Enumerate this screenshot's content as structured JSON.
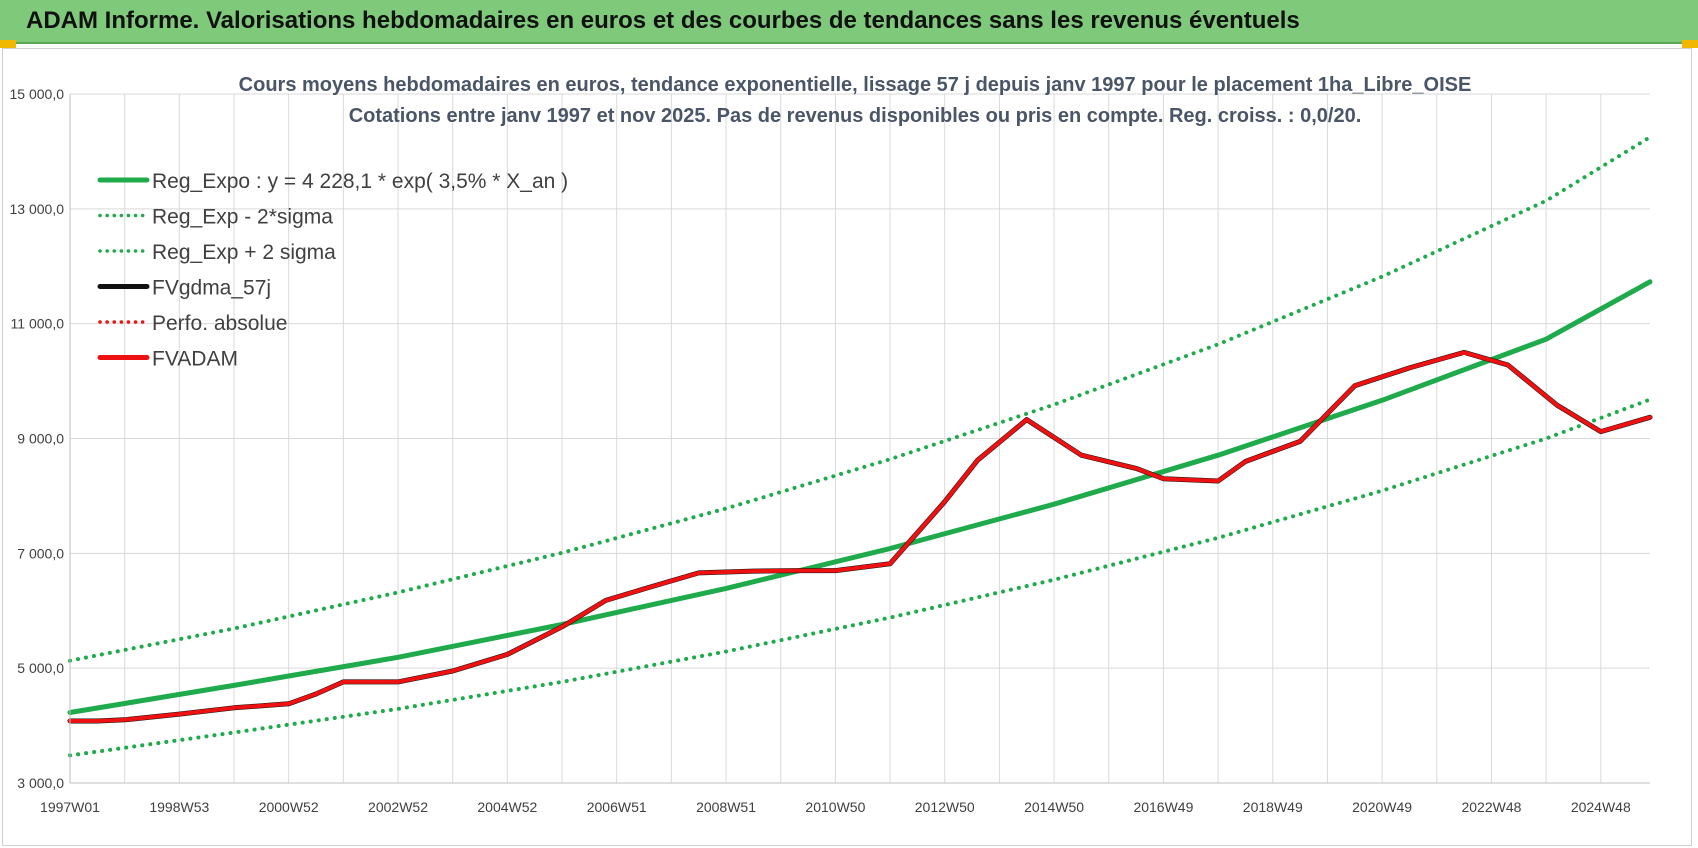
{
  "banner": {
    "title": "ADAM Informe. Valorisations hebdomadaires en euros et des courbes de tendances sans les revenus éventuels"
  },
  "colors": {
    "banner_bg": "#7ec97a",
    "trend_green": "#1faa4b",
    "fv_red": "#ee1111",
    "fv_black": "#111111",
    "grid": "#d9d9d9"
  },
  "chart_data": {
    "type": "line",
    "title": "Cours moyens hebdomadaires en euros, tendance exponentielle, lissage 57 j depuis janv 1997 pour le placement 1ha_Libre_OISE",
    "subtitle": "Cotations entre janv 1997 et nov 2025. Pas de revenus disponibles ou pris en compte. Reg. croiss. : 0,0/20.",
    "xlabel": "",
    "ylabel": "",
    "ylim": [
      3000,
      15000
    ],
    "xlim": [
      1997.0,
      2025.9
    ],
    "grid": true,
    "legend_position": "top-left",
    "y_ticks": [
      "3 000,0",
      "5 000,0",
      "7 000,0",
      "9 000,0",
      "11 000,0",
      "13 000,0",
      "15 000,0"
    ],
    "y_tick_values": [
      3000,
      5000,
      7000,
      9000,
      11000,
      13000,
      15000
    ],
    "x_tick_labels": [
      "1997W01",
      "1998W53",
      "2000W52",
      "2002W52",
      "2004W52",
      "2006W51",
      "2008W51",
      "2010W50",
      "2012W50",
      "2014W50",
      "2016W49",
      "2018W49",
      "2020W49",
      "2022W48",
      "2024W48"
    ],
    "x_tick_years": [
      1997.0,
      1999.0,
      2001.0,
      2003.0,
      2005.0,
      2007.0,
      2009.0,
      2011.0,
      2013.0,
      2015.0,
      2017.0,
      2019.0,
      2021.0,
      2023.0,
      2025.0
    ],
    "series": [
      {
        "name": "Reg_Expo : y = 4 228,1 * exp( 3,5% *  X_an )",
        "style": "solid",
        "color": "#1faa4b",
        "x": [
          1997.0,
          2000.0,
          2003.0,
          2006.0,
          2009.0,
          2012.0,
          2015.0,
          2018.0,
          2021.0,
          2024.0,
          2025.9
        ],
        "y": [
          4228,
          4700,
          5190,
          5760,
          6390,
          7085,
          7855,
          8710,
          9665,
          10730,
          11730
        ]
      },
      {
        "name": "Reg_Exp - 2*sigma",
        "style": "dotted",
        "color": "#1faa4b",
        "x": [
          1997.0,
          2000.0,
          2003.0,
          2006.0,
          2009.0,
          2012.0,
          2015.0,
          2018.0,
          2021.0,
          2024.0,
          2025.9
        ],
        "y": [
          3480,
          3880,
          4290,
          4760,
          5290,
          5880,
          6540,
          7270,
          8090,
          9000,
          9680
        ]
      },
      {
        "name": "Reg_Exp + 2 sigma",
        "style": "dotted",
        "color": "#1faa4b",
        "x": [
          1997.0,
          2000.0,
          2003.0,
          2006.0,
          2009.0,
          2012.0,
          2015.0,
          2018.0,
          2021.0,
          2024.0,
          2025.9
        ],
        "y": [
          5130,
          5690,
          6320,
          7010,
          7780,
          8640,
          9590,
          10640,
          11820,
          13140,
          14250
        ]
      },
      {
        "name": "FVgdma_57j",
        "style": "solid",
        "color": "#111111",
        "x": [
          1997.0,
          1997.5,
          1998.0,
          1999.0,
          2000.0,
          2001.0,
          2001.5,
          2002.0,
          2003.0,
          2004.0,
          2005.0,
          2006.0,
          2006.8,
          2007.5,
          2008.5,
          2009.5,
          2010.3,
          2011.0,
          2012.0,
          2013.0,
          2013.6,
          2014.5,
          2015.5,
          2016.5,
          2017.0,
          2018.0,
          2018.5,
          2019.5,
          2020.5,
          2021.5,
          2022.5,
          2023.3,
          2024.2,
          2025.0,
          2025.9
        ],
        "y": [
          4080,
          4080,
          4100,
          4200,
          4310,
          4380,
          4550,
          4760,
          4760,
          4950,
          5240,
          5720,
          6180,
          6380,
          6660,
          6690,
          6700,
          6700,
          6820,
          7900,
          8620,
          9330,
          8710,
          8480,
          8300,
          8260,
          8600,
          8950,
          9920,
          10230,
          10500,
          10280,
          9580,
          9120,
          9370
        ]
      },
      {
        "name": "Perfo. absolue",
        "style": "dotted",
        "color": "#ee1111",
        "x": [],
        "y": []
      },
      {
        "name": "FVADAM",
        "style": "solid",
        "color": "#ee1111",
        "x": [
          1997.0,
          1997.5,
          1998.0,
          1999.0,
          2000.0,
          2001.0,
          2001.5,
          2002.0,
          2003.0,
          2004.0,
          2005.0,
          2006.0,
          2006.8,
          2007.5,
          2008.5,
          2009.5,
          2010.3,
          2011.0,
          2012.0,
          2013.0,
          2013.6,
          2014.5,
          2015.5,
          2016.5,
          2017.0,
          2018.0,
          2018.5,
          2019.5,
          2020.5,
          2021.5,
          2022.5,
          2023.3,
          2024.2,
          2025.0,
          2025.9
        ],
        "y": [
          4080,
          4080,
          4100,
          4200,
          4310,
          4380,
          4550,
          4760,
          4760,
          4950,
          5240,
          5720,
          6180,
          6380,
          6660,
          6690,
          6700,
          6700,
          6820,
          7900,
          8620,
          9330,
          8710,
          8480,
          8300,
          8260,
          8600,
          8950,
          9920,
          10230,
          10500,
          10280,
          9580,
          9120,
          9370
        ]
      }
    ]
  }
}
